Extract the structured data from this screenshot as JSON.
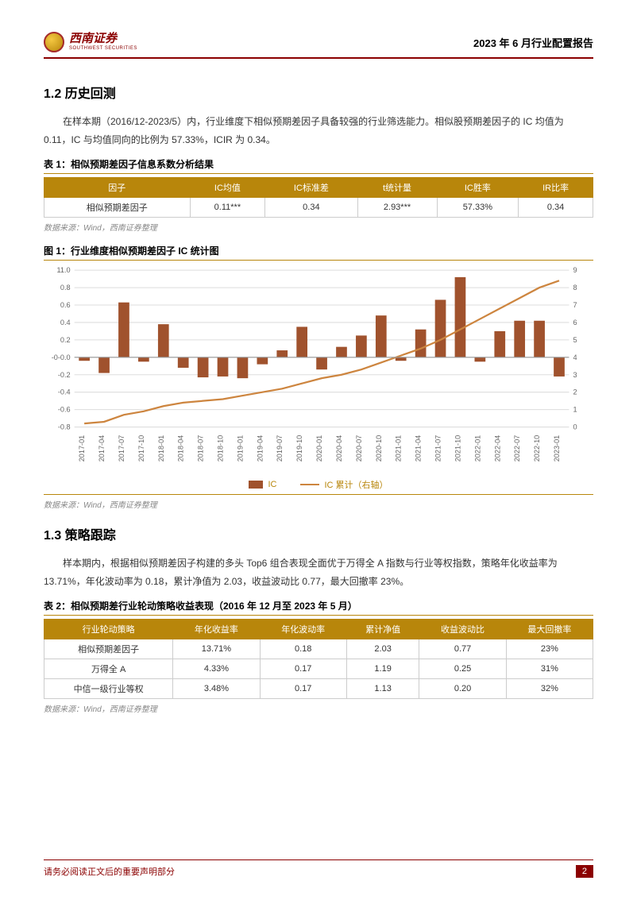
{
  "header": {
    "logo_cn": "西南证券",
    "logo_en": "SOUTHWEST SECURITIES",
    "title": "2023 年 6 月行业配置报告"
  },
  "section1": {
    "title": "1.2 历史回测",
    "para": "在样本期（2016/12-2023/5）内，行业维度下相似预期差因子具备较强的行业筛选能力。相似股预期差因子的 IC 均值为 0.11，IC 与均值同向的比例为 57.33%，ICIR 为 0.34。"
  },
  "table1": {
    "caption": "表 1：相似预期差因子信息系数分析结果",
    "headers": [
      "因子",
      "IC均值",
      "IC标准差",
      "t统计量",
      "IC胜率",
      "IR比率"
    ],
    "rows": [
      [
        "相似预期差因子",
        "0.11***",
        "0.34",
        "2.93***",
        "57.33%",
        "0.34"
      ]
    ],
    "source": "数据来源：Wind，西南证券整理"
  },
  "figure1": {
    "caption": "图 1：行业维度相似预期差因子 IC 统计图",
    "source": "数据来源：Wind，西南证券整理",
    "legend_bar": "IC",
    "legend_line": "IC 累计（右轴）",
    "type": "bar+line",
    "left_axis": {
      "min": -0.8,
      "max": 1.0,
      "step": 0.2
    },
    "right_axis": {
      "min": 0,
      "max": 9,
      "step": 1
    },
    "categories": [
      "2017-01",
      "2017-04",
      "2017-07",
      "2017-10",
      "2018-01",
      "2018-04",
      "2018-07",
      "2018-10",
      "2019-01",
      "2019-04",
      "2019-07",
      "2019-10",
      "2020-01",
      "2020-04",
      "2020-07",
      "2020-10",
      "2021-01",
      "2021-04",
      "2021-07",
      "2021-10",
      "2022-01",
      "2022-04",
      "2022-07",
      "2022-10",
      "2023-01"
    ],
    "bar_values": [
      -0.04,
      -0.18,
      0.63,
      -0.05,
      0.38,
      -0.12,
      -0.23,
      -0.22,
      -0.24,
      -0.08,
      0.08,
      0.35,
      -0.14,
      0.12,
      0.25,
      0.48,
      -0.04,
      0.32,
      0.66,
      0.92,
      -0.05,
      0.3,
      0.42,
      0.42,
      -0.22
    ],
    "line_values": [
      0.2,
      0.3,
      0.7,
      0.9,
      1.2,
      1.4,
      1.5,
      1.6,
      1.8,
      2.0,
      2.2,
      2.5,
      2.8,
      3.0,
      3.3,
      3.7,
      4.1,
      4.5,
      5.0,
      5.6,
      6.2,
      6.8,
      7.4,
      8.0,
      8.4
    ],
    "bar_color": "#a0522d",
    "line_color": "#cd853f",
    "grid_color": "#dddddd",
    "axis_font": 9,
    "label_font": 9
  },
  "section2": {
    "title": "1.3 策略跟踪",
    "para": "样本期内，根据相似预期差因子构建的多头 Top6 组合表现全面优于万得全 A 指数与行业等权指数，策略年化收益率为 13.71%，年化波动率为 0.18，累计净值为 2.03，收益波动比 0.77，最大回撤率 23%。"
  },
  "table2": {
    "caption": "表 2：相似预期差行业轮动策略收益表现（2016 年 12 月至 2023 年 5 月）",
    "headers": [
      "行业轮动策略",
      "年化收益率",
      "年化波动率",
      "累计净值",
      "收益波动比",
      "最大回撤率"
    ],
    "rows": [
      [
        "相似预期差因子",
        "13.71%",
        "0.18",
        "2.03",
        "0.77",
        "23%"
      ],
      [
        "万得全 A",
        "4.33%",
        "0.17",
        "1.19",
        "0.25",
        "31%"
      ],
      [
        "中信一级行业等权",
        "3.48%",
        "0.17",
        "1.13",
        "0.20",
        "32%"
      ]
    ],
    "source": "数据来源：Wind，西南证券整理"
  },
  "footer": {
    "text": "请务必阅读正文后的重要声明部分",
    "page": "2"
  },
  "colors": {
    "brand": "#8b0000",
    "gold": "#b8860b"
  }
}
